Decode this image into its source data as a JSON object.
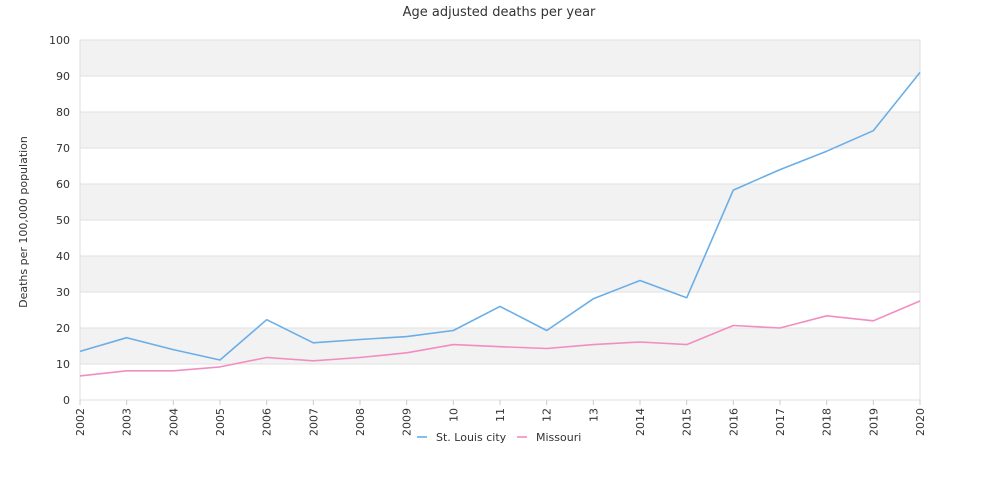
{
  "chart_data": {
    "type": "line",
    "title": "Age adjusted deaths per year",
    "ylabel": "Deaths per 100,000 population",
    "xlabel": "",
    "ylim": [
      0,
      100
    ],
    "yticks": [
      0,
      10,
      20,
      30,
      40,
      50,
      60,
      70,
      80,
      90,
      100
    ],
    "grid": "alternating horizontal bands",
    "legend_position": "bottom",
    "x": [
      "2002",
      "2003",
      "2004",
      "2005",
      "2006",
      "2007",
      "2008",
      "2009",
      "10",
      "11",
      "12",
      "13",
      "2014",
      "2015",
      "2016",
      "2017",
      "2018",
      "2019",
      "2020"
    ],
    "series": [
      {
        "name": "St. Louis city",
        "color": "#6aaee8",
        "values": [
          13.5,
          17.3,
          14.0,
          11.1,
          22.3,
          15.9,
          16.8,
          17.6,
          19.3,
          26.0,
          19.3,
          28.1,
          33.2,
          28.4,
          58.3,
          64.0,
          69.1,
          74.8,
          91.0
        ]
      },
      {
        "name": "Missouri",
        "color": "#f28dc2",
        "values": [
          6.7,
          8.1,
          8.1,
          9.2,
          11.8,
          10.9,
          11.8,
          13.1,
          15.4,
          14.8,
          14.3,
          15.4,
          16.1,
          15.4,
          20.7,
          20.0,
          23.4,
          22.0,
          27.5
        ]
      }
    ]
  }
}
